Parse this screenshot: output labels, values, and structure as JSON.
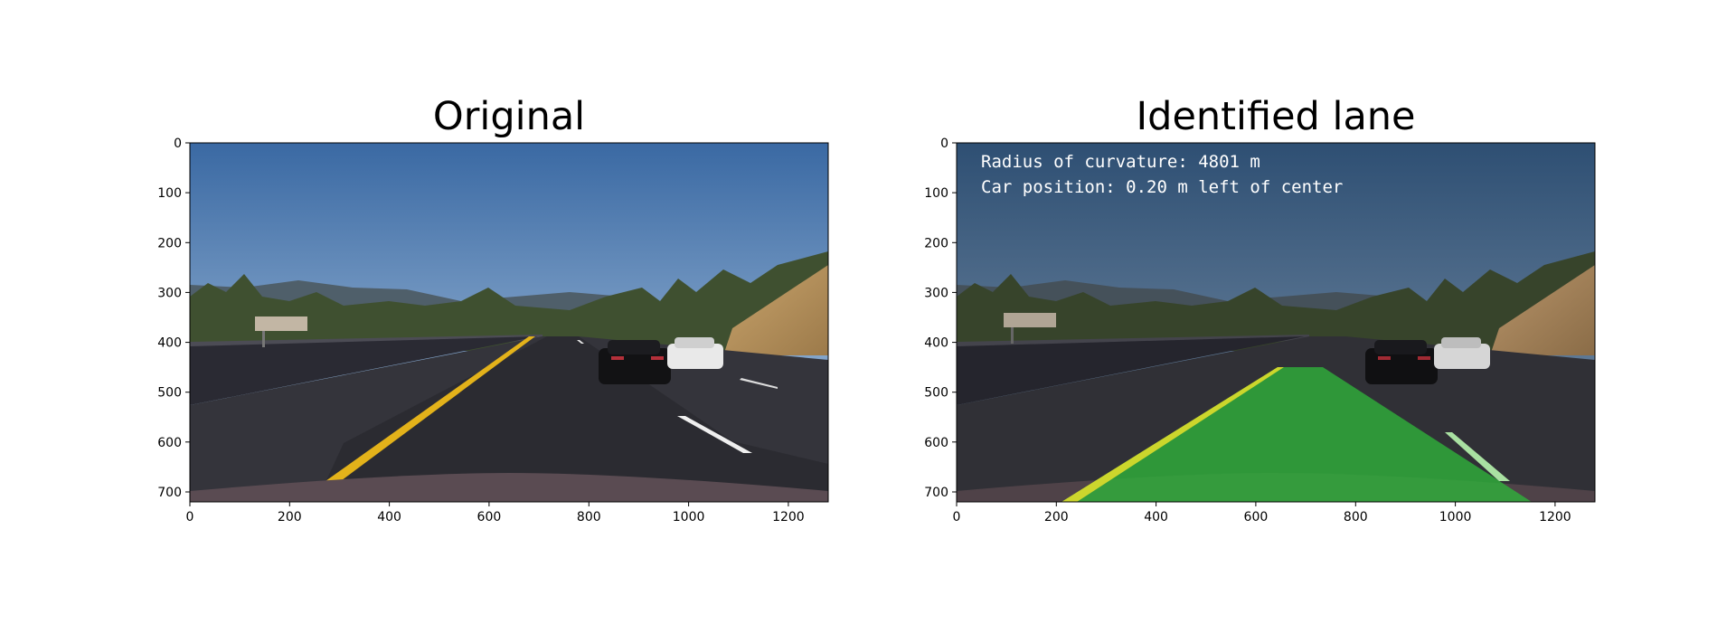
{
  "figure": {
    "panels": [
      {
        "id": "left",
        "title": "Original",
        "x_ticks": [
          "0",
          "200",
          "400",
          "600",
          "800",
          "1000",
          "1200"
        ],
        "y_ticks": [
          "0",
          "100",
          "200",
          "300",
          "400",
          "500",
          "600",
          "700"
        ],
        "x_range": [
          0,
          1280
        ],
        "y_range": [
          0,
          720
        ]
      },
      {
        "id": "right",
        "title": "Identified lane",
        "overlay_lines": [
          "Radius of curvature: 4801 m",
          "Car position: 0.20 m left of center"
        ],
        "x_ticks": [
          "0",
          "200",
          "400",
          "600",
          "800",
          "1000",
          "1200"
        ],
        "y_ticks": [
          "0",
          "100",
          "200",
          "300",
          "400",
          "500",
          "600",
          "700"
        ],
        "x_range": [
          0,
          1280
        ],
        "y_range": [
          0,
          720
        ]
      }
    ]
  },
  "colors": {
    "lane_fill": "#2fae3a",
    "left_line": "#e8e02a",
    "right_line": "#8ff08a",
    "sky_top": "#3f6fa8",
    "sky_bottom": "#a9c3de",
    "road": "#2c2c32"
  }
}
